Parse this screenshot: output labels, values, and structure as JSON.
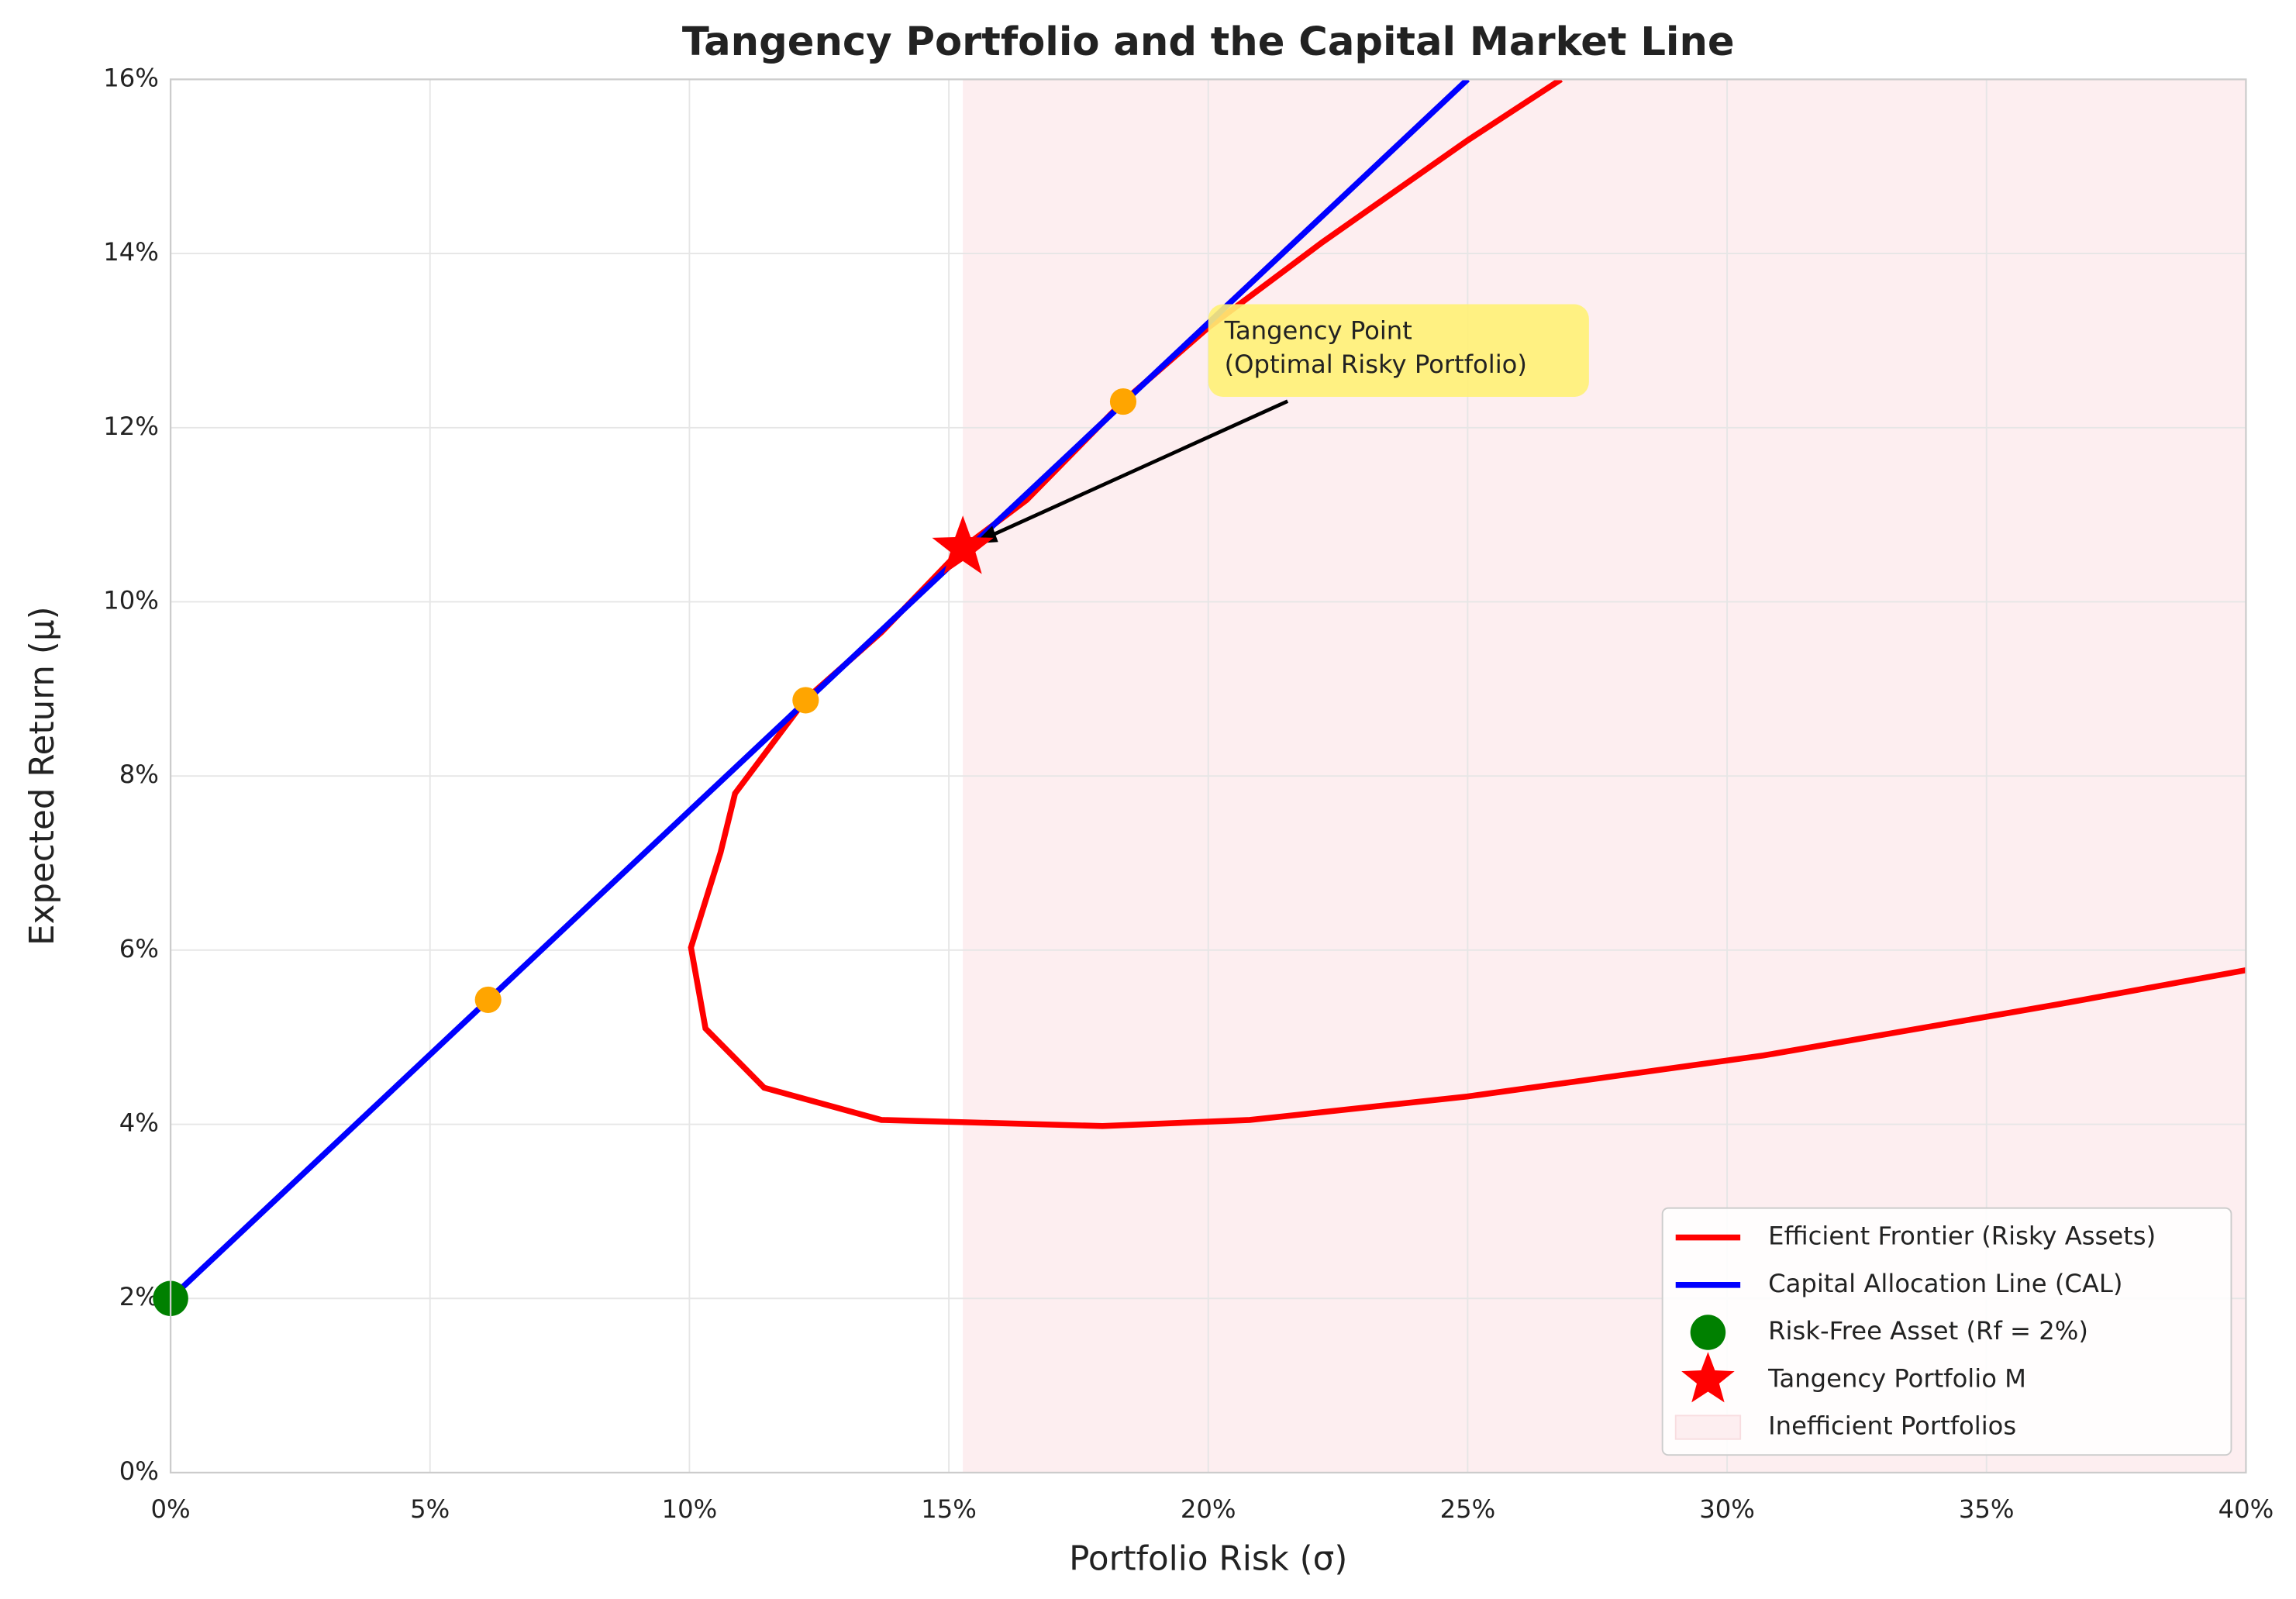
{
  "chart_data": {
    "type": "line",
    "title": "Tangency Portfolio and the Capital Market Line",
    "x_label": "Portfolio Risk (σ)",
    "y_label": "Expected Return (μ)",
    "xlim": [
      0,
      40
    ],
    "ylim": [
      0,
      16
    ],
    "xticks": [
      {
        "value": 0,
        "label": "0%"
      },
      {
        "value": 5,
        "label": "5%"
      },
      {
        "value": 10,
        "label": "10%"
      },
      {
        "value": 15,
        "label": "15%"
      },
      {
        "value": 20,
        "label": "20%"
      },
      {
        "value": 25,
        "label": "25%"
      },
      {
        "value": 30,
        "label": "30%"
      },
      {
        "value": 35,
        "label": "35%"
      },
      {
        "value": 40,
        "label": "40%"
      }
    ],
    "yticks": [
      {
        "value": 0,
        "label": "0%"
      },
      {
        "value": 2,
        "label": "2%"
      },
      {
        "value": 4,
        "label": "4%"
      },
      {
        "value": 6,
        "label": "6%"
      },
      {
        "value": 8,
        "label": "8%"
      },
      {
        "value": 10,
        "label": "10%"
      },
      {
        "value": 12,
        "label": "12%"
      },
      {
        "value": 14,
        "label": "14%"
      },
      {
        "value": 16,
        "label": "16%"
      }
    ],
    "grid": true,
    "legend_position": "lower right",
    "shade": {
      "name": "Inefficient Portfolios",
      "color": "#fdeef0",
      "x": [
        15.27,
        40
      ]
    },
    "series": [
      {
        "name": "Efficient Frontier (Risky Assets)",
        "color": "#ff0000",
        "x": [
          40,
          36.4,
          30.7,
          25.0,
          20.8,
          17.96,
          13.7,
          11.44,
          10.31,
          10.03,
          10.6,
          10.88,
          12.24,
          13.7,
          15.27,
          16.5,
          18.36,
          20,
          22.2,
          25,
          26.8
        ],
        "values": [
          5.77,
          5.38,
          4.79,
          4.32,
          4.05,
          3.98,
          4.05,
          4.42,
          5.1,
          6.03,
          7.12,
          7.8,
          8.88,
          9.65,
          10.62,
          11.17,
          12.3,
          13.15,
          14.13,
          15.3,
          16
        ]
      },
      {
        "name": "Capital Allocation Line (CAL)",
        "color": "#0000ff",
        "x": [
          0,
          25
        ],
        "values": [
          2,
          16
        ]
      }
    ],
    "risk_free": {
      "name": "Risk-Free Asset (Rf = 2%)",
      "color": "#008000",
      "x": 0,
      "value": 2
    },
    "tangency": {
      "name": "Tangency Portfolio M",
      "color": "#ff0000",
      "x": 15.27,
      "value": 10.62
    },
    "points": {
      "color": "#ffa500",
      "x": [
        6.12,
        12.24,
        18.36
      ],
      "values": [
        5.43,
        8.87,
        12.3
      ]
    },
    "annotation": [
      "Tangency Point",
      "(Optimal Risky Portfolio)"
    ]
  }
}
